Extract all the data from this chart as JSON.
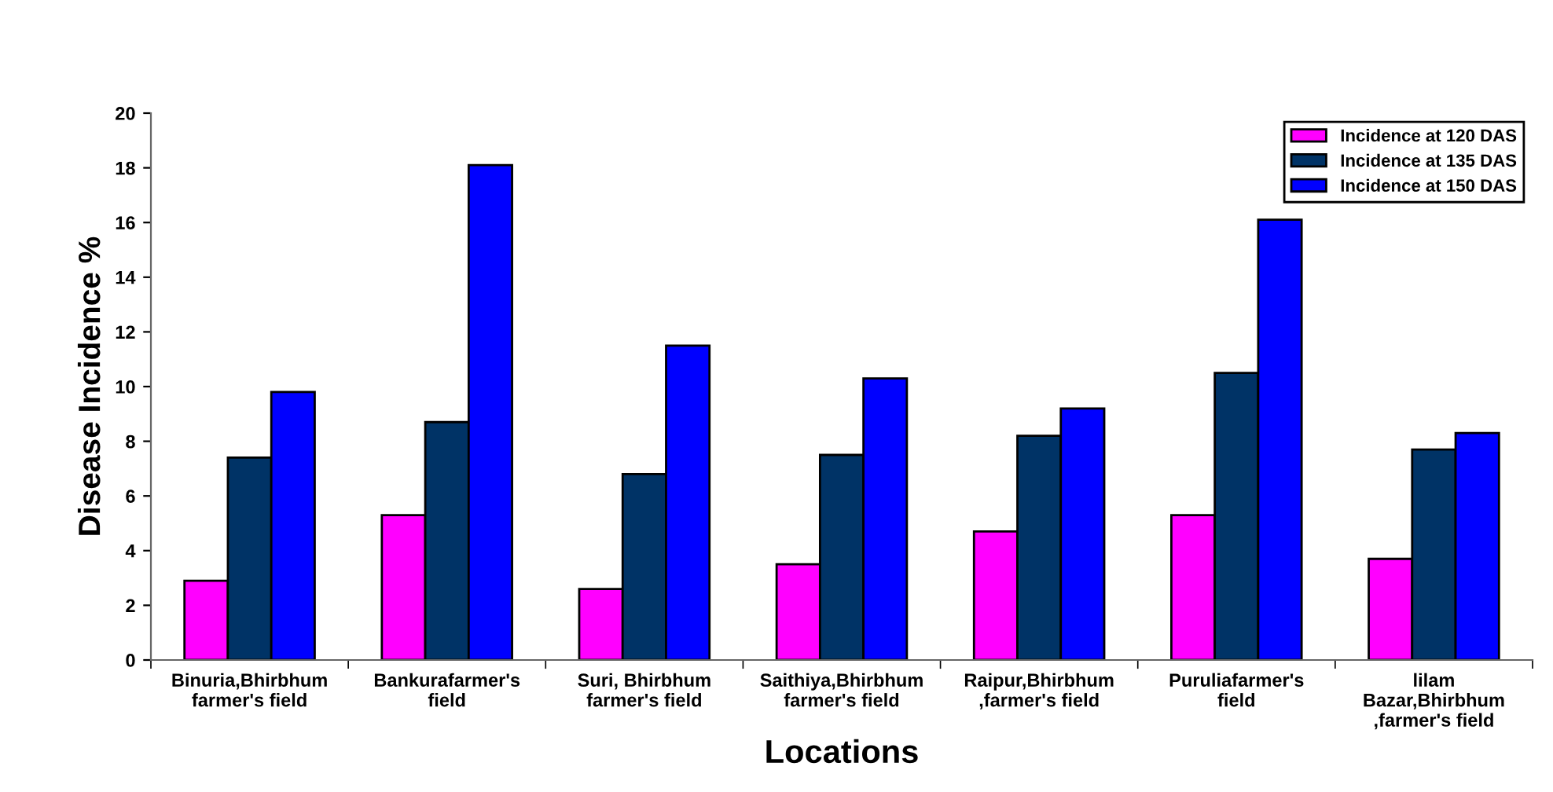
{
  "chart_data": {
    "type": "bar",
    "xlabel": "Locations",
    "ylabel": "Disease Incidence %",
    "categories": [
      "Binuria,Bhirbhum\nfarmer's field",
      "Bankurafarmer's\nfield",
      "Suri, Bhirbhum\nfarmer's field",
      "Saithiya,Bhirbhum\nfarmer's field",
      "Raipur,Bhirbhum\n,farmer's field",
      "Puruliafarmer's\nfield",
      "lilam\nBazar,Bhirbhum\n,farmer's field"
    ],
    "series": [
      {
        "name": "Incidence at 120 DAS",
        "color": "#ff00ff",
        "values": [
          2.9,
          5.3,
          2.6,
          3.5,
          4.7,
          5.3,
          3.7
        ]
      },
      {
        "name": "Incidence at 135 DAS",
        "color": "#003366",
        "values": [
          7.4,
          8.7,
          6.8,
          7.5,
          8.2,
          10.5,
          7.7
        ]
      },
      {
        "name": "Incidence at 150 DAS",
        "color": "#0000ff",
        "values": [
          9.8,
          18.1,
          11.5,
          10.3,
          9.2,
          16.1,
          8.3
        ]
      }
    ],
    "ylim": [
      0,
      20
    ],
    "yticks": [
      0,
      2,
      4,
      6,
      8,
      10,
      12,
      14,
      16,
      18,
      20
    ],
    "grid": false,
    "legend": "top right"
  }
}
